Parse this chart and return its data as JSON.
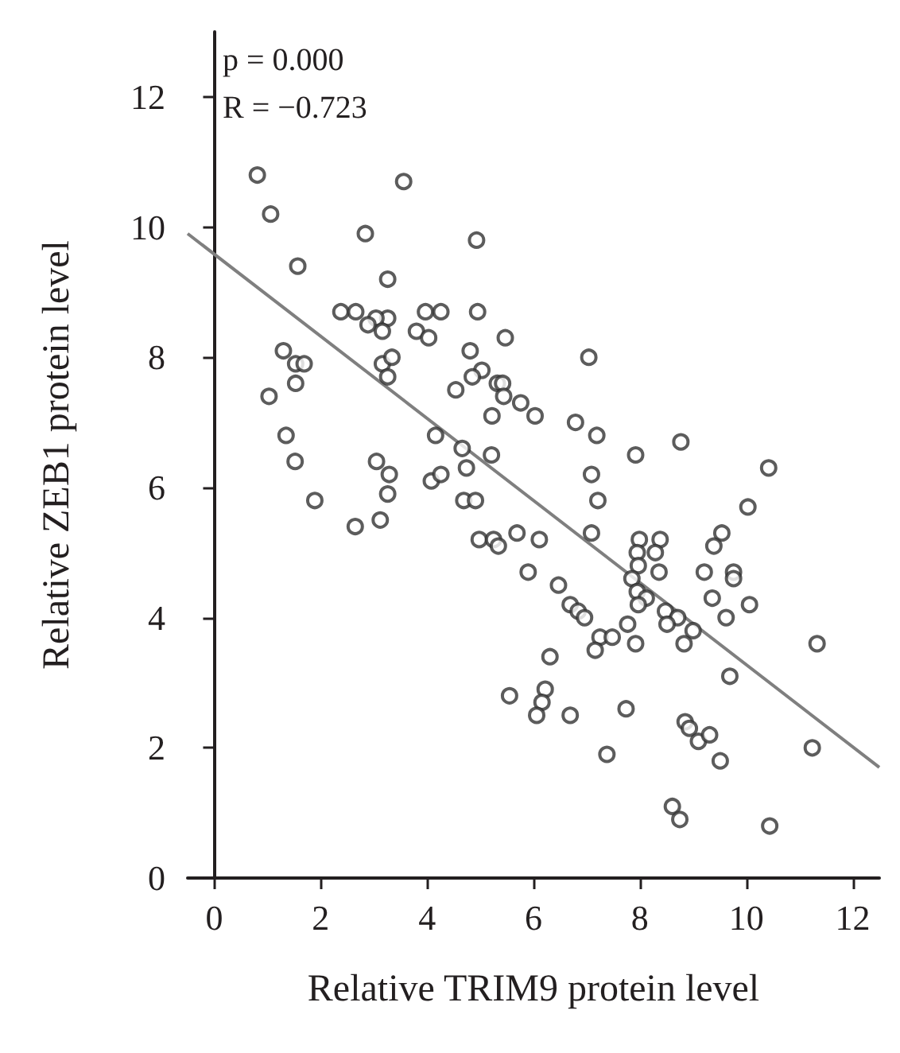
{
  "chart_data": {
    "type": "scatter",
    "xlabel": "Relative TRIM9 protein level",
    "ylabel": "Relative ZEB1 protein level",
    "annotations": [
      "p = 0.000",
      "R = −0.723"
    ],
    "xlim": [
      -0.5,
      12.5
    ],
    "ylim": [
      0,
      13
    ],
    "xticks": [
      0,
      2,
      4,
      6,
      8,
      10,
      12
    ],
    "yticks": [
      0,
      2,
      4,
      6,
      8,
      10,
      12
    ],
    "grid": false,
    "marker": "circle",
    "series": [
      {
        "color": "#333333",
        "x": [
          0.81,
          3.56,
          1.06,
          2.84,
          4.93,
          1.57,
          3.26,
          2.38,
          2.66,
          3.26,
          3.04,
          2.89,
          3.16,
          3.97,
          4.26,
          4.95,
          3.8,
          4.03,
          5.47,
          1.3,
          1.53,
          1.69,
          3.16,
          3.34,
          3.26,
          4.81,
          5.03,
          4.85,
          4.54,
          5.32,
          5.42,
          5.44,
          5.76,
          5.22,
          1.03,
          1.53,
          1.35,
          1.52,
          4.16,
          4.66,
          5.21,
          4.74,
          3.05,
          3.29,
          3.26,
          1.89,
          4.08,
          4.26,
          4.69,
          4.91,
          7.04,
          6.03,
          6.79,
          7.19,
          7.92,
          8.77,
          7.09,
          7.21,
          10.42,
          10.03,
          2.65,
          3.12,
          4.98,
          5.25,
          5.34,
          5.69,
          5.9,
          5.55,
          6.11,
          7.09,
          6.47,
          6.69,
          6.84,
          6.96,
          6.31,
          7.25,
          7.48,
          7.16,
          7.77,
          7.92,
          7.99,
          8.38,
          7.95,
          8.29,
          8.36,
          7.97,
          7.85,
          7.95,
          8.12,
          7.97,
          8.48,
          8.71,
          8.51,
          9.0,
          8.83,
          9.54,
          9.39,
          9.21,
          9.76,
          9.76,
          9.36,
          9.62,
          10.06,
          9.69,
          11.33,
          6.22,
          6.16,
          6.06,
          6.69,
          7.74,
          7.38,
          8.85,
          8.93,
          9.1,
          9.31,
          9.51,
          8.61,
          8.75,
          10.44,
          11.24
        ],
        "values": [
          10.8,
          10.7,
          10.2,
          9.9,
          9.8,
          9.4,
          9.2,
          8.7,
          8.7,
          8.6,
          8.6,
          8.5,
          8.4,
          8.7,
          8.7,
          8.7,
          8.4,
          8.3,
          8.3,
          8.1,
          7.9,
          7.9,
          7.9,
          8.0,
          7.7,
          8.1,
          7.8,
          7.7,
          7.5,
          7.6,
          7.6,
          7.4,
          7.3,
          7.1,
          7.4,
          7.6,
          6.8,
          6.4,
          6.8,
          6.6,
          6.5,
          6.3,
          6.4,
          6.2,
          5.9,
          5.8,
          6.1,
          6.2,
          5.8,
          5.8,
          8.0,
          7.1,
          7.0,
          6.8,
          6.5,
          6.7,
          6.2,
          5.8,
          6.3,
          5.7,
          5.4,
          5.5,
          5.2,
          5.2,
          5.1,
          5.3,
          4.7,
          2.8,
          5.2,
          5.3,
          4.5,
          4.2,
          4.1,
          4.0,
          3.4,
          3.7,
          3.7,
          3.5,
          3.9,
          3.6,
          5.2,
          5.2,
          5.0,
          5.0,
          4.7,
          4.8,
          4.6,
          4.4,
          4.3,
          4.2,
          4.1,
          4.0,
          3.9,
          3.8,
          3.6,
          5.3,
          5.1,
          4.7,
          4.7,
          4.6,
          4.3,
          4.0,
          4.2,
          3.1,
          3.6,
          2.9,
          2.7,
          2.5,
          2.5,
          2.6,
          1.9,
          2.4,
          2.3,
          2.1,
          2.2,
          1.8,
          1.1,
          0.9,
          0.8,
          2.0
        ]
      },
      {
        "type": "line",
        "color": "#7f7f7f",
        "x": [
          -0.5,
          12.5
        ],
        "values": [
          9.9,
          1.7
        ],
        "marker": "none",
        "line_style": "solid"
      }
    ]
  }
}
